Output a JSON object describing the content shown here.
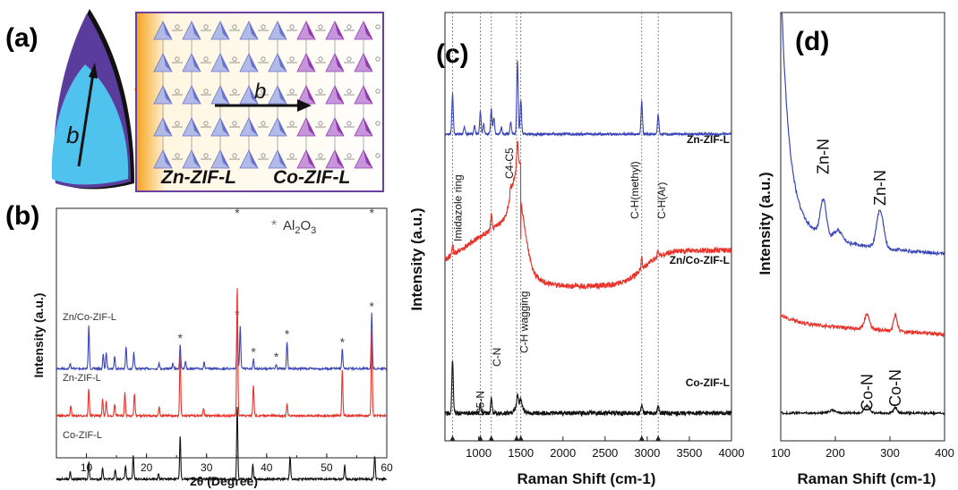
{
  "colors": {
    "zn": "#3a46b8",
    "znco": "#e8322a",
    "co": "#111111",
    "frame": "#6b3fa0",
    "orange": "#f6a21a"
  },
  "panel_a": {
    "label": "(a)",
    "axis_label_left": "b",
    "axis_label_inset": "b",
    "zn_label": "Zn-ZIF-L",
    "co_label": "Co-ZIF-L"
  },
  "chart_data": [
    {
      "id": "b",
      "type": "line",
      "panel_label": "(b)",
      "xlabel": "2θ (Degree)",
      "ylabel": "Intensity (a.u.)",
      "xlim": [
        5,
        60
      ],
      "xticks": [
        10,
        20,
        30,
        40,
        50,
        60
      ],
      "legend_marker": "*",
      "legend_text": "Al2O3",
      "series": [
        {
          "name": "Zn/Co-ZIF-L",
          "color": "#3a46b8",
          "base": 0.74,
          "peaks": [
            [
              7.3,
              0.07
            ],
            [
              10.4,
              0.55
            ],
            [
              12.8,
              0.18
            ],
            [
              13.3,
              0.2
            ],
            [
              14.7,
              0.16
            ],
            [
              16.6,
              0.28
            ],
            [
              17.9,
              0.2
            ],
            [
              22.1,
              0.08
            ],
            [
              24.4,
              0.07
            ],
            [
              25.6,
              0.3
            ],
            [
              26.5,
              0.1
            ],
            [
              29.6,
              0.08
            ],
            [
              35.1,
              0.6
            ],
            [
              35.6,
              0.55
            ],
            [
              37.8,
              0.12
            ],
            [
              41.6,
              0.06
            ],
            [
              43.4,
              0.35
            ],
            [
              52.6,
              0.25
            ],
            [
              57.5,
              0.7
            ]
          ],
          "star_x": [
            25.6,
            35.1,
            37.8,
            41.6,
            43.4,
            52.6,
            57.5
          ]
        },
        {
          "name": "Zn-ZIF-L",
          "color": "#e8322a",
          "base": 0.97,
          "peaks": [
            [
              7.4,
              0.12
            ],
            [
              10.4,
              0.35
            ],
            [
              12.7,
              0.22
            ],
            [
              13.3,
              0.18
            ],
            [
              14.7,
              0.15
            ],
            [
              16.4,
              0.3
            ],
            [
              18.0,
              0.28
            ],
            [
              22.1,
              0.12
            ],
            [
              25.6,
              0.8
            ],
            [
              29.5,
              0.1
            ],
            [
              35.1,
              1.65
            ],
            [
              37.8,
              0.4
            ],
            [
              43.4,
              0.15
            ],
            [
              52.6,
              0.6
            ],
            [
              57.5,
              1.1
            ]
          ]
        },
        {
          "name": "Co-ZIF-L",
          "color": "#111111",
          "base": 1.28,
          "peaks": [
            [
              7.3,
              0.1
            ],
            [
              10.4,
              0.22
            ],
            [
              12.7,
              0.15
            ],
            [
              14.8,
              0.12
            ],
            [
              16.5,
              0.18
            ],
            [
              17.8,
              0.3
            ],
            [
              22.0,
              0.08
            ],
            [
              25.6,
              0.55
            ],
            [
              35.1,
              0.95
            ],
            [
              37.7,
              0.2
            ],
            [
              43.9,
              0.28
            ],
            [
              53.0,
              0.18
            ],
            [
              58.0,
              0.3
            ]
          ]
        }
      ]
    },
    {
      "id": "c",
      "type": "line",
      "panel_label": "(c)",
      "xlabel": "Raman Shift (cm-1)",
      "ylabel": "Intensity (a.u.)",
      "xlim": [
        600,
        4000
      ],
      "xticks": [
        1000,
        1500,
        2000,
        2500,
        3000,
        3500,
        4000
      ],
      "reference_lines": [
        {
          "x": 690,
          "label": "Imidazole ring"
        },
        {
          "x": 1020,
          "label": "C5-N"
        },
        {
          "x": 1150,
          "label": "C-N"
        },
        {
          "x": 1450,
          "label": "C4-C5"
        },
        {
          "x": 1500,
          "label": "C-H wagging"
        },
        {
          "x": 2935,
          "label": "C-H(methyl)"
        },
        {
          "x": 3130,
          "label": "C-H(Ar)"
        }
      ],
      "series": [
        {
          "name": "Zn-ZIF-L",
          "color": "#3a46b8"
        },
        {
          "name": "Zn/Co-ZIF-L",
          "color": "#e8322a"
        },
        {
          "name": "Co-ZIF-L",
          "color": "#111111"
        }
      ]
    },
    {
      "id": "d",
      "type": "line",
      "panel_label": "(d)",
      "xlabel": "Raman Shift (cm-1)",
      "ylabel": "Intensity (a.u.)",
      "xlim": [
        100,
        400
      ],
      "xticks": [
        100,
        200,
        300,
        400
      ],
      "annotations": [
        {
          "x": 178,
          "text": "Zn-N"
        },
        {
          "x": 282,
          "text": "Zn-N"
        },
        {
          "x": 258,
          "text": "Co-N"
        },
        {
          "x": 310,
          "text": "Co-N"
        }
      ],
      "series": [
        {
          "name": "Zn-ZIF-L",
          "color": "#3a46b8"
        },
        {
          "name": "Zn/Co-ZIF-L",
          "color": "#e8322a"
        },
        {
          "name": "Co-ZIF-L",
          "color": "#111111"
        }
      ]
    }
  ]
}
